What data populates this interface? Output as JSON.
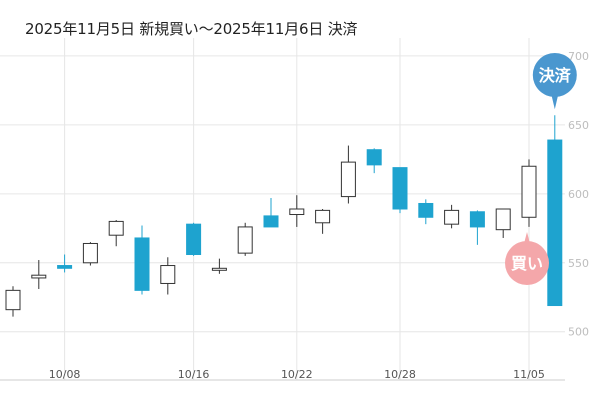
{
  "header": {
    "title": "2025年11月5日 新規買い〜2025年11月6日 決済"
  },
  "colors": {
    "up": "#ffffff",
    "up_stroke": "#333333",
    "down": "#1ea3cf",
    "down_stroke": "#1ea3cf",
    "grid": "#e6e6e6",
    "sell_badge": "#4a97cf",
    "buy_badge": "#f4a7aa"
  },
  "annotations": {
    "sell_label": "決済",
    "buy_label": "買い",
    "sell_icon": "callout-badge",
    "buy_icon": "callout-badge"
  },
  "chart_data": {
    "type": "candlestick",
    "title": "2025年11月5日 新規買い〜2025年11月6日 決済",
    "ylim": [
      465,
      713
    ],
    "yticks": [
      500,
      550,
      600,
      650,
      700
    ],
    "xticks": [
      {
        "label": "10/08",
        "index": 2
      },
      {
        "label": "10/16",
        "index": 7
      },
      {
        "label": "10/22",
        "index": 11
      },
      {
        "label": "10/28",
        "index": 15
      },
      {
        "label": "11/05",
        "index": 20
      }
    ],
    "grid": true,
    "candles": [
      {
        "open": 516,
        "high": 533,
        "low": 511,
        "close": 530
      },
      {
        "open": 539,
        "high": 552,
        "low": 531,
        "close": 541
      },
      {
        "open": 548,
        "high": 556,
        "low": 543,
        "close": 546
      },
      {
        "open": 550,
        "high": 565,
        "low": 548,
        "close": 564
      },
      {
        "open": 570,
        "high": 581,
        "low": 562,
        "close": 580
      },
      {
        "open": 568,
        "high": 577,
        "low": 527,
        "close": 530
      },
      {
        "open": 535,
        "high": 554,
        "low": 527,
        "close": 548
      },
      {
        "open": 578,
        "high": 579,
        "low": 555,
        "close": 556
      },
      {
        "open": 546,
        "high": 553,
        "low": 542,
        "close": 546
      },
      {
        "open": 557,
        "high": 579,
        "low": 555,
        "close": 576
      },
      {
        "open": 584,
        "high": 597,
        "low": 576,
        "close": 576
      },
      {
        "open": 585,
        "high": 599,
        "low": 576,
        "close": 589
      },
      {
        "open": 579,
        "high": 589,
        "low": 571,
        "close": 588
      },
      {
        "open": 598,
        "high": 635,
        "low": 593,
        "close": 623
      },
      {
        "open": 632,
        "high": 633,
        "low": 615,
        "close": 621
      },
      {
        "open": 619,
        "high": 619,
        "low": 586,
        "close": 589
      },
      {
        "open": 593,
        "high": 596,
        "low": 578,
        "close": 583
      },
      {
        "open": 578,
        "high": 592,
        "low": 575,
        "close": 588
      },
      {
        "open": 587,
        "high": 588,
        "low": 563,
        "close": 576
      },
      {
        "open": 574,
        "high": 589,
        "low": 568,
        "close": 589
      },
      {
        "open": 583,
        "high": 625,
        "low": 576,
        "close": 620
      },
      {
        "open": 639,
        "high": 657,
        "low": 519,
        "close": 519
      }
    ]
  }
}
